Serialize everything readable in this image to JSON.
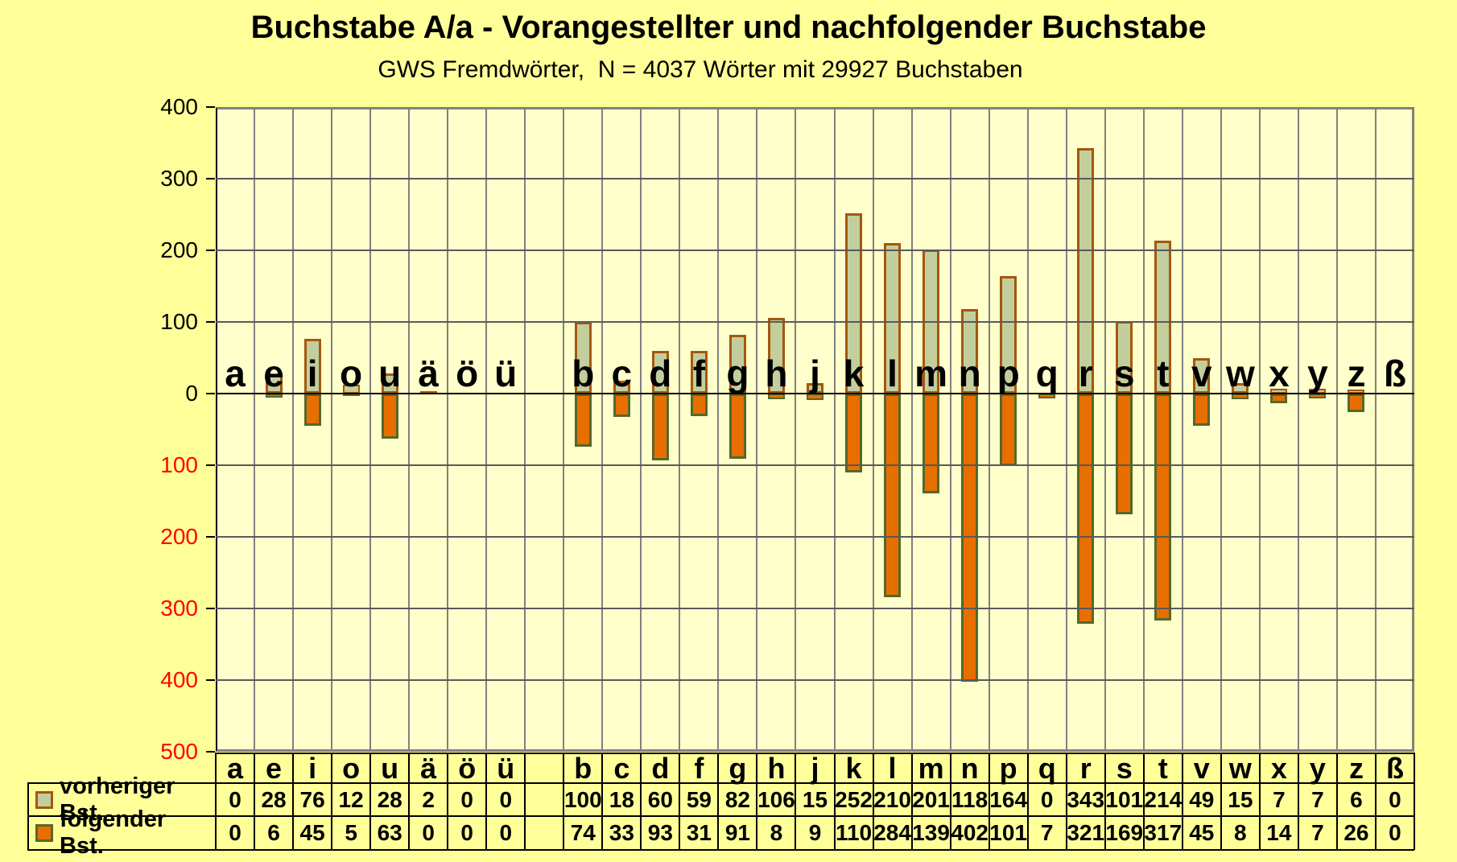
{
  "title": "Buchstabe A/a - Vorangestellter und nachfolgender Buchstabe",
  "subtitle": "GWS Fremdwörter,  N = 4037 Wörter mit 29927 Buchstaben",
  "chart_data": {
    "type": "bar",
    "orientation": "diverging-vertical",
    "categories": [
      "a",
      "e",
      "i",
      "o",
      "u",
      "ä",
      "ö",
      "ü",
      "",
      "b",
      "c",
      "d",
      "f",
      "g",
      "h",
      "j",
      "k",
      "l",
      "m",
      "n",
      "p",
      "q",
      "r",
      "s",
      "t",
      "v",
      "w",
      "x",
      "y",
      "z",
      "ß"
    ],
    "series": [
      {
        "name": "vorheriger Bst.",
        "direction": "up",
        "fill": "#C3CE9D",
        "border": "#A5570E",
        "values": [
          0,
          28,
          76,
          12,
          28,
          2,
          0,
          0,
          null,
          100,
          18,
          60,
          59,
          82,
          106,
          15,
          252,
          210,
          201,
          118,
          164,
          0,
          343,
          101,
          214,
          49,
          15,
          7,
          7,
          6,
          0
        ]
      },
      {
        "name": "folgender Bst.",
        "direction": "down",
        "fill": "#E76F00",
        "border": "#55682A",
        "values": [
          0,
          6,
          45,
          5,
          63,
          0,
          0,
          0,
          null,
          74,
          33,
          93,
          31,
          91,
          8,
          9,
          110,
          284,
          139,
          402,
          101,
          7,
          321,
          169,
          317,
          45,
          8,
          14,
          7,
          26,
          0
        ]
      }
    ],
    "y_axis": {
      "ticks": [
        400,
        300,
        200,
        100,
        0,
        -100,
        -200,
        -300,
        -400,
        -500
      ],
      "tick_label_style": "absolute-value",
      "positive_label_color": "#000000",
      "negative_label_color": "#FF0000"
    },
    "ylim": [
      -500,
      400
    ],
    "grid": true,
    "legend_position": "table-left"
  },
  "colors": {
    "page_bg": "#FFFF99",
    "plot_bg": "#FFFFCC",
    "grid_h": "#595959",
    "grid_v": "#808080",
    "zero_line": "#000000",
    "table_border": "#000000",
    "text": "#000000"
  }
}
